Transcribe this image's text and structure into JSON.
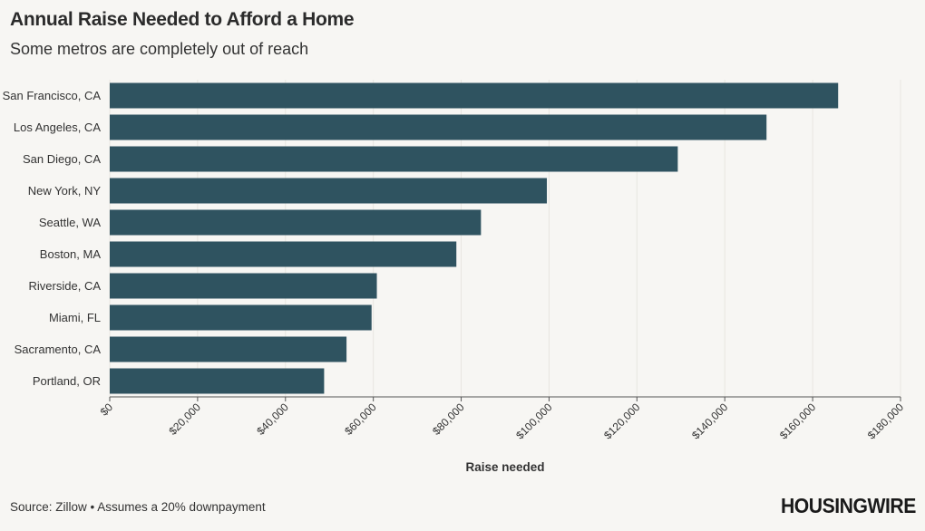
{
  "header": {
    "title": "Annual Raise Needed to Afford a Home",
    "subtitle": "Some metros are completely out of reach"
  },
  "footer": {
    "source": "Source: Zillow • Assumes a 20% downpayment",
    "logo": "HOUSINGWIRE"
  },
  "colors": {
    "bar": "#2f5360",
    "grid": "#e8e6e0",
    "background": "#f7f6f3"
  },
  "chart_data": {
    "type": "bar",
    "orientation": "horizontal",
    "title": "Annual Raise Needed to Afford a Home",
    "subtitle": "Some metros are completely out of reach",
    "xlabel": "Raise needed",
    "ylabel": "",
    "xlim": [
      0,
      180000
    ],
    "grid": true,
    "categories": [
      "San Francisco, CA",
      "Los Angeles, CA",
      "San Diego, CA",
      "New York, NY",
      "Seattle, WA",
      "Boston, MA",
      "Riverside, CA",
      "Miami, FL",
      "Sacramento, CA",
      "Portland, OR"
    ],
    "values": [
      165800,
      149500,
      129300,
      99500,
      84500,
      78900,
      60800,
      59600,
      53900,
      48800
    ],
    "tick_values": [
      0,
      20000,
      40000,
      60000,
      80000,
      100000,
      120000,
      140000,
      160000,
      180000
    ],
    "tick_labels": [
      "$0",
      "$20,000",
      "$40,000",
      "$60,000",
      "$80,000",
      "$100,000",
      "$120,000",
      "$140,000",
      "$160,000",
      "$180,000"
    ]
  }
}
